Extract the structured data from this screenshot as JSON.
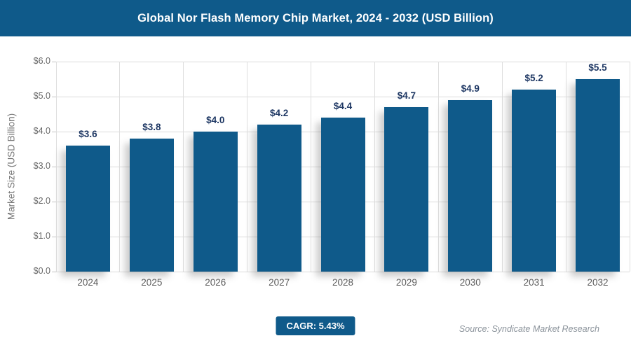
{
  "header": {
    "title": "Global Nor Flash Memory Chip Market, 2024 - 2032 (USD Billion)"
  },
  "chart_data": {
    "type": "bar",
    "title": "Global Nor Flash Memory Chip Market, 2024 - 2032 (USD Billion)",
    "categories": [
      "2024",
      "2025",
      "2026",
      "2027",
      "2028",
      "2029",
      "2030",
      "2031",
      "2032"
    ],
    "values": [
      3.6,
      3.8,
      4.0,
      4.2,
      4.4,
      4.7,
      4.9,
      5.2,
      5.5
    ],
    "value_labels": [
      "$3.6",
      "$3.8",
      "$4.0",
      "$4.2",
      "$4.4",
      "$4.7",
      "$4.9",
      "$5.2",
      "$5.5"
    ],
    "xlabel": "",
    "ylabel": "Market Size (USD Billion)",
    "ylim": [
      0,
      6
    ],
    "y_ticks": [
      {
        "value": 0,
        "label": "$0.0"
      },
      {
        "value": 1,
        "label": "$1.0"
      },
      {
        "value": 2,
        "label": "$2.0"
      },
      {
        "value": 3,
        "label": "$3.0"
      },
      {
        "value": 4,
        "label": "$4.0"
      },
      {
        "value": 5,
        "label": "$5.0"
      },
      {
        "value": 6,
        "label": "$6.0"
      }
    ],
    "grid": true,
    "legend": false,
    "bar_color": "#0f5a8a"
  },
  "footer": {
    "cagr_label": "CAGR: 5.43%",
    "source": "Source: Syndicate Market Research"
  },
  "colors": {
    "primary_blue": "#0f5a8a",
    "value_label_navy": "#1f3864",
    "gridline_gray": "#dcdcdc",
    "axis_text_gray": "#666666",
    "source_gray": "#8b939b",
    "background": "#ffffff"
  }
}
